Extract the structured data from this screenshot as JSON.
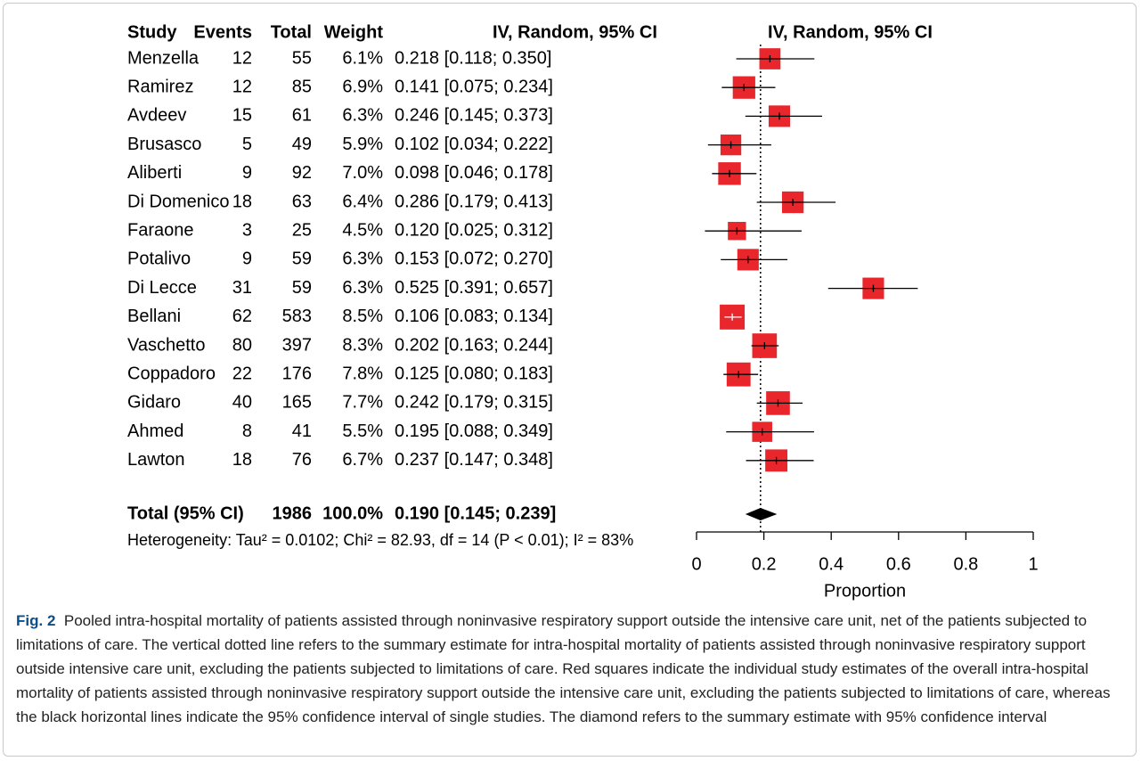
{
  "chart_data": {
    "type": "forest",
    "columns": [
      "Study",
      "Events",
      "Total",
      "Weight",
      "IV, Random, 95% CI"
    ],
    "plot_header": "IV, Random, 95% CI",
    "studies": [
      "Menzella",
      "Ramirez",
      "Avdeev",
      "Brusasco",
      "Aliberti",
      "Di Domenico",
      "Faraone",
      "Potalivo",
      "Di Lecce",
      "Bellani",
      "Vaschetto",
      "Coppadoro",
      "Gidaro",
      "Ahmed",
      "Lawton"
    ],
    "events": [
      12,
      12,
      15,
      5,
      9,
      18,
      3,
      9,
      31,
      62,
      80,
      22,
      40,
      8,
      18
    ],
    "totals": [
      55,
      85,
      61,
      49,
      92,
      63,
      25,
      59,
      59,
      583,
      397,
      176,
      165,
      41,
      76
    ],
    "weights": [
      6.1,
      6.9,
      6.3,
      5.9,
      7.0,
      6.4,
      4.5,
      6.3,
      6.3,
      8.5,
      8.3,
      7.8,
      7.7,
      5.5,
      6.7
    ],
    "weight_labels": [
      "6.1%",
      "6.9%",
      "6.3%",
      "5.9%",
      "7.0%",
      "6.4%",
      "4.5%",
      "6.3%",
      "6.3%",
      "8.5%",
      "8.3%",
      "7.8%",
      "7.7%",
      "5.5%",
      "6.7%"
    ],
    "estimates": [
      0.218,
      0.141,
      0.246,
      0.102,
      0.098,
      0.286,
      0.12,
      0.153,
      0.525,
      0.106,
      0.202,
      0.125,
      0.242,
      0.195,
      0.237
    ],
    "lower": [
      0.118,
      0.075,
      0.145,
      0.034,
      0.046,
      0.179,
      0.025,
      0.072,
      0.391,
      0.083,
      0.163,
      0.08,
      0.179,
      0.088,
      0.147
    ],
    "upper": [
      0.35,
      0.234,
      0.373,
      0.222,
      0.178,
      0.413,
      0.312,
      0.27,
      0.657,
      0.134,
      0.244,
      0.183,
      0.315,
      0.349,
      0.348
    ],
    "ci_labels": [
      "0.218 [0.118; 0.350]",
      "0.141 [0.075; 0.234]",
      "0.246 [0.145; 0.373]",
      "0.102 [0.034; 0.222]",
      "0.098 [0.046; 0.178]",
      "0.286 [0.179; 0.413]",
      "0.120 [0.025; 0.312]",
      "0.153 [0.072; 0.270]",
      "0.525 [0.391; 0.657]",
      "0.106 [0.083; 0.134]",
      "0.202 [0.163; 0.244]",
      "0.125 [0.080; 0.183]",
      "0.242 [0.179; 0.315]",
      "0.195 [0.088; 0.349]",
      "0.237 [0.147; 0.348]"
    ],
    "color": "#e8262b",
    "total": {
      "label": "Total (95% CI)",
      "total": 1986,
      "weight": 100.0,
      "weight_label": "100.0%",
      "ci_label": "0.190 [0.145; 0.239]",
      "estimate": 0.19,
      "lower": 0.145,
      "upper": 0.239
    },
    "heterogeneity": "Heterogeneity: Tau² = 0.0102; Chi² = 82.93, df = 14 (P < 0.01); I² = 83%",
    "xlim": [
      0,
      1
    ],
    "xticks": [
      0,
      0.2,
      0.4,
      0.6,
      0.8,
      1
    ],
    "xlabel": "Proportion"
  },
  "caption": {
    "label": "Fig. 2",
    "text": "Pooled intra-hospital mortality of patients assisted through noninvasive respiratory support outside the intensive care unit, net of the patients subjected to limitations of care. The vertical dotted line refers to the summary estimate for intra-hospital mortality of patients assisted through noninvasive respiratory support outside intensive care unit, excluding the patients subjected to limitations of care. Red squares indicate the individual study estimates of the overall intra-hospital mortality of patients assisted through noninvasive respiratory support outside the intensive care unit, excluding the patients subjected to limitations of care, whereas the black horizontal lines indicate the 95% confidence interval of single studies. The diamond refers to the summary estimate with 95% confidence interval"
  }
}
